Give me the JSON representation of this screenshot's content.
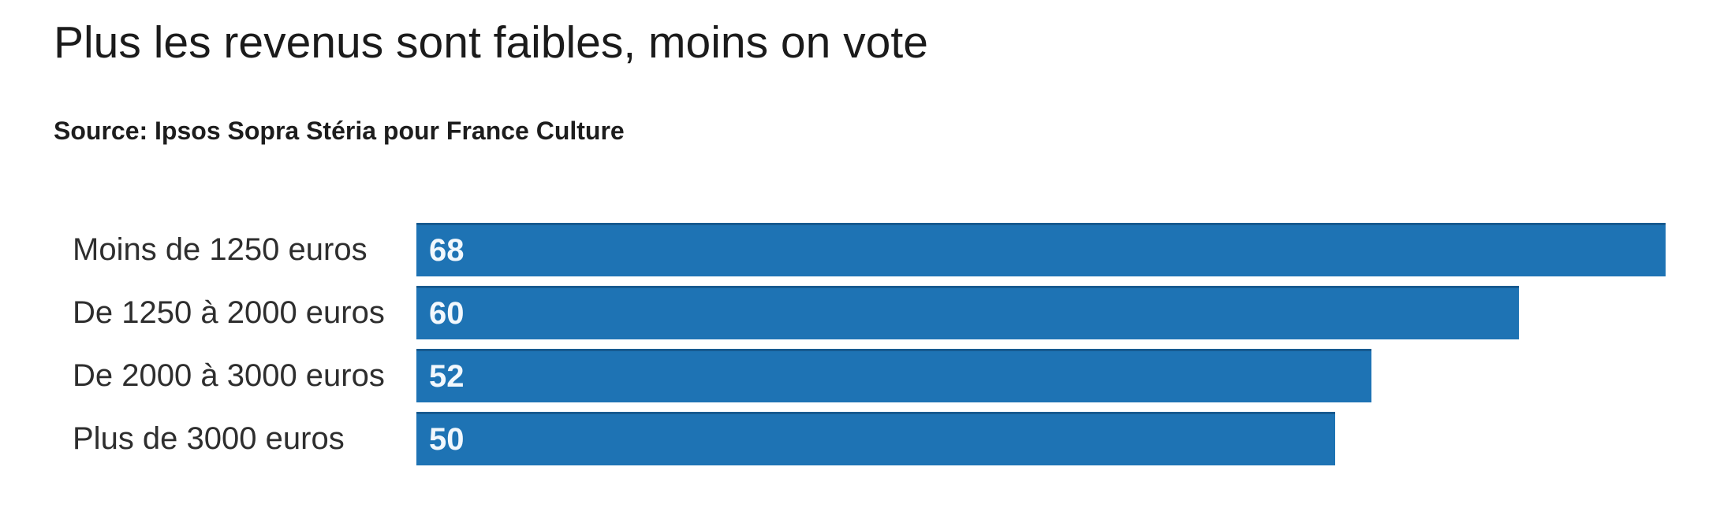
{
  "chart": {
    "title": "Plus les revenus sont faibles, moins on vote",
    "source": "Source: Ipsos Sopra Stéria pour France Culture",
    "bar_color": "#1E73B4",
    "max_value": 68,
    "rows": [
      {
        "label": "Moins de 1250 euros",
        "value": 68
      },
      {
        "label": "De 1250 à 2000 euros",
        "value": 60
      },
      {
        "label": "De 2000 à 3000 euros",
        "value": 52
      },
      {
        "label": "Plus de 3000 euros",
        "value": 50
      }
    ]
  },
  "chart_data": {
    "type": "bar",
    "orientation": "horizontal",
    "title": "Plus les revenus sont faibles, moins on vote",
    "source": "Source: Ipsos Sopra Stéria pour France Culture",
    "categories": [
      "Moins de 1250 euros",
      "De 1250 à 2000 euros",
      "De 2000 à 3000 euros",
      "Plus de 3000 euros"
    ],
    "values": [
      68,
      60,
      52,
      50
    ],
    "xlim": [
      0,
      68
    ],
    "grid": false,
    "legend": false,
    "bar_color": "#1E73B4",
    "value_labels": "inside-left, white"
  }
}
